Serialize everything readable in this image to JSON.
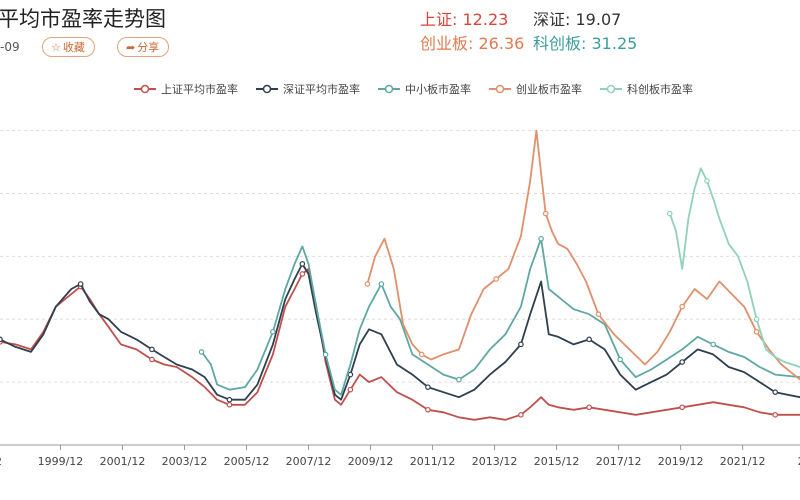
{
  "header": {
    "title": "平均市盈率走势图",
    "date": "-09",
    "favorite_label": "收藏",
    "share_label": "分享"
  },
  "stats": {
    "sh_label": "上证:",
    "sh_value": "12.23",
    "sz_label": "深证:",
    "sz_value": "19.07",
    "cy_label": "创业板:",
    "cy_value": "26.36",
    "kc_label": "科创板:",
    "kc_value": "31.25"
  },
  "colors": {
    "sh": "#c0504d",
    "sz": "#2e3f4f",
    "zx": "#5ea7a2",
    "cy": "#e0906a",
    "kc": "#8fd1b9",
    "grid": "#dddddd"
  },
  "chart_data": {
    "type": "line",
    "title": "",
    "xlabel": "",
    "ylabel": "",
    "xlim": [
      1998.0,
      2023.8
    ],
    "ylim": [
      0,
      130
    ],
    "grid": "horizontal dashed",
    "legend_position": "top-center",
    "x_tick_labels": [
      "2",
      "1999/12",
      "2001/12",
      "2003/12",
      "2005/12",
      "2007/12",
      "2009/12",
      "2011/12",
      "2013/12",
      "2015/12",
      "2017/12",
      "2019/12",
      "2021/12",
      "20"
    ],
    "x_tick_positions": [
      1997.95,
      1999.95,
      2001.95,
      2003.95,
      2005.95,
      2007.95,
      2009.95,
      2011.95,
      2013.95,
      2015.95,
      2017.95,
      2019.95,
      2021.95,
      2023.95
    ],
    "series": [
      {
        "name": "上证平均市盈率",
        "key": "sh",
        "x": [
          1998.0,
          1998.5,
          1999.0,
          1999.4,
          1999.8,
          2000.3,
          2000.6,
          2000.9,
          2001.2,
          2001.5,
          2001.9,
          2002.4,
          2002.9,
          2003.3,
          2003.7,
          2004.2,
          2004.6,
          2005.0,
          2005.4,
          2005.9,
          2006.3,
          2006.8,
          2007.2,
          2007.5,
          2007.75,
          2007.95,
          2008.2,
          2008.5,
          2008.8,
          2009.0,
          2009.3,
          2009.6,
          2009.9,
          2010.3,
          2010.8,
          2011.3,
          2011.8,
          2012.3,
          2012.8,
          2013.3,
          2013.8,
          2014.3,
          2014.8,
          2015.1,
          2015.45,
          2015.7,
          2016.0,
          2016.5,
          2017.0,
          2017.5,
          2018.0,
          2018.5,
          2019.0,
          2019.5,
          2020.0,
          2020.5,
          2021.0,
          2021.5,
          2022.0,
          2022.5,
          2023.0,
          2023.8
        ],
        "y": [
          41,
          40,
          38,
          45,
          55,
          60,
          63,
          58,
          52,
          47,
          40,
          38,
          34,
          32,
          31,
          27,
          23,
          18,
          16,
          16,
          21,
          36,
          55,
          62,
          68,
          70,
          55,
          33,
          18,
          16,
          22,
          28,
          25,
          27,
          21,
          18,
          14,
          13,
          11,
          10,
          11,
          10,
          12,
          15,
          19,
          16,
          15,
          14,
          15,
          14,
          13,
          12,
          13,
          14,
          15,
          16,
          17,
          16,
          15,
          13,
          12,
          12
        ]
      },
      {
        "name": "深证平均市盈率",
        "key": "sz",
        "x": [
          1998.0,
          1998.5,
          1999.0,
          1999.4,
          1999.8,
          2000.3,
          2000.6,
          2000.9,
          2001.2,
          2001.5,
          2001.9,
          2002.4,
          2002.9,
          2003.3,
          2003.7,
          2004.2,
          2004.6,
          2005.0,
          2005.4,
          2005.9,
          2006.3,
          2006.8,
          2007.2,
          2007.5,
          2007.75,
          2007.95,
          2008.2,
          2008.5,
          2008.8,
          2009.0,
          2009.3,
          2009.6,
          2009.9,
          2010.3,
          2010.8,
          2011.3,
          2011.8,
          2012.3,
          2012.8,
          2013.3,
          2013.8,
          2014.3,
          2014.8,
          2015.1,
          2015.45,
          2015.7,
          2016.0,
          2016.5,
          2017.0,
          2017.5,
          2018.0,
          2018.5,
          2019.0,
          2019.5,
          2020.0,
          2020.5,
          2021.0,
          2021.5,
          2022.0,
          2022.5,
          2023.0,
          2023.8
        ],
        "y": [
          42,
          39,
          37,
          44,
          55,
          62,
          64,
          57,
          52,
          50,
          45,
          42,
          38,
          35,
          32,
          30,
          27,
          20,
          18,
          18,
          24,
          40,
          58,
          66,
          72,
          68,
          52,
          35,
          20,
          18,
          28,
          40,
          46,
          44,
          32,
          28,
          23,
          21,
          19,
          22,
          28,
          33,
          40,
          52,
          65,
          44,
          43,
          40,
          42,
          38,
          28,
          22,
          25,
          28,
          33,
          38,
          36,
          31,
          29,
          25,
          21,
          19
        ]
      },
      {
        "name": "中小板市盈率",
        "key": "zx",
        "x": [
          2004.5,
          2004.8,
          2005.0,
          2005.4,
          2005.9,
          2006.3,
          2006.8,
          2007.2,
          2007.5,
          2007.75,
          2007.95,
          2008.2,
          2008.5,
          2008.8,
          2009.0,
          2009.3,
          2009.6,
          2009.9,
          2010.3,
          2010.6,
          2010.9,
          2011.3,
          2011.8,
          2012.3,
          2012.8,
          2013.3,
          2013.8,
          2014.3,
          2014.8,
          2015.1,
          2015.45,
          2015.7,
          2016.0,
          2016.5,
          2017.0,
          2017.5,
          2018.0,
          2018.5,
          2019.0,
          2019.5,
          2020.0,
          2020.5,
          2021.0,
          2021.5,
          2022.0,
          2022.5,
          2023.0,
          2023.8
        ],
        "y": [
          37,
          32,
          24,
          22,
          23,
          30,
          45,
          62,
          72,
          79,
          72,
          55,
          36,
          22,
          20,
          32,
          46,
          55,
          64,
          55,
          50,
          36,
          32,
          28,
          26,
          30,
          38,
          44,
          55,
          70,
          82,
          62,
          59,
          54,
          52,
          48,
          34,
          27,
          30,
          34,
          38,
          43,
          40,
          37,
          35,
          31,
          28,
          27
        ]
      },
      {
        "name": "创业板市盈率",
        "key": "cy",
        "x": [
          2009.85,
          2010.1,
          2010.4,
          2010.7,
          2011.0,
          2011.3,
          2011.6,
          2011.9,
          2012.3,
          2012.8,
          2013.2,
          2013.6,
          2014.0,
          2014.4,
          2014.8,
          2015.1,
          2015.3,
          2015.45,
          2015.6,
          2015.8,
          2016.0,
          2016.3,
          2016.6,
          2016.9,
          2017.3,
          2017.8,
          2018.3,
          2018.8,
          2019.2,
          2019.6,
          2020.0,
          2020.4,
          2020.8,
          2021.2,
          2021.6,
          2022.0,
          2022.4,
          2022.8,
          2023.2,
          2023.8
        ],
        "y": [
          64,
          75,
          82,
          70,
          48,
          40,
          36,
          34,
          36,
          38,
          52,
          62,
          66,
          70,
          83,
          105,
          125,
          108,
          92,
          85,
          80,
          78,
          72,
          65,
          52,
          44,
          38,
          32,
          37,
          45,
          55,
          62,
          58,
          65,
          60,
          55,
          45,
          38,
          32,
          26
        ]
      },
      {
        "name": "科创板市盈率",
        "key": "kc",
        "x": [
          2019.6,
          2019.8,
          2020.0,
          2020.2,
          2020.4,
          2020.6,
          2020.8,
          2021.0,
          2021.2,
          2021.5,
          2021.8,
          2022.1,
          2022.4,
          2022.7,
          2023.0,
          2023.3,
          2023.8
        ],
        "y": [
          92,
          85,
          70,
          90,
          102,
          110,
          105,
          98,
          90,
          80,
          75,
          65,
          50,
          38,
          35,
          33,
          31
        ]
      }
    ]
  }
}
